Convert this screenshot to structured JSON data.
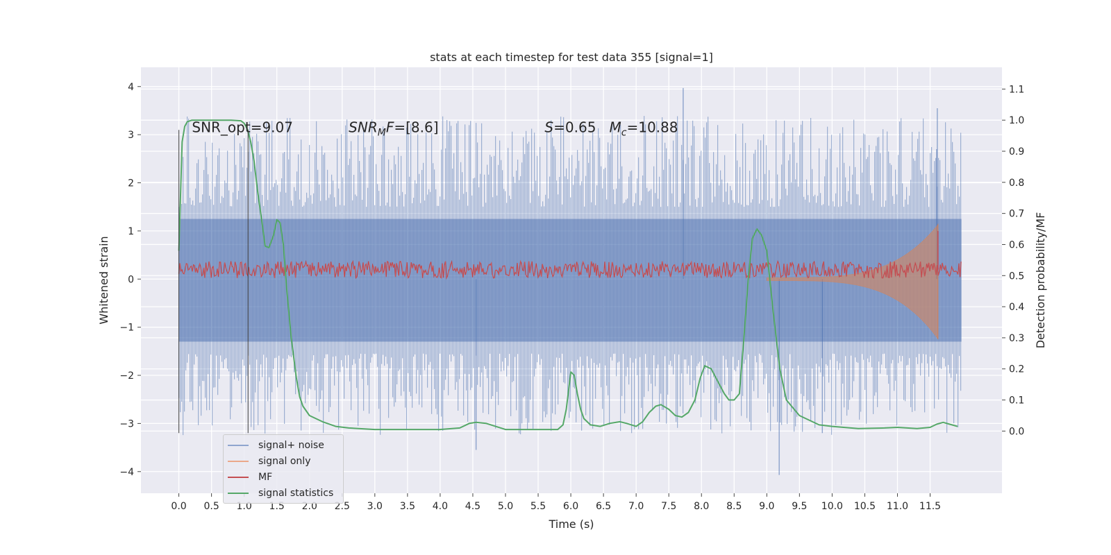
{
  "chart_data": {
    "type": "line",
    "title": "stats at each timestep for test data 355 [signal=1]",
    "xlabel": "Time (s)",
    "ylabel_left": "Whitened strain",
    "ylabel_right": "Detection probability/MF",
    "xlim": [
      -0.58,
      12.6
    ],
    "ylim_left": [
      -4.45,
      4.4
    ],
    "ylim_right": [
      -0.2,
      1.17
    ],
    "x_ticks": [
      0.0,
      0.5,
      1.0,
      1.5,
      2.0,
      2.5,
      3.0,
      3.5,
      4.0,
      4.5,
      5.0,
      5.5,
      6.0,
      6.5,
      7.0,
      7.5,
      8.0,
      8.5,
      9.0,
      9.5,
      10.0,
      10.5,
      11.0,
      11.5
    ],
    "x_tick_labels": [
      "0.0",
      "0.5",
      "1.0",
      "1.5",
      "2.0",
      "2.5",
      "3.0",
      "3.5",
      "4.0",
      "4.5",
      "5.0",
      "5.5",
      "6.0",
      "6.5",
      "7.0",
      "7.5",
      "8.0",
      "8.5",
      "9.0",
      "9.5",
      "10.0",
      "10.5",
      "11.0",
      "11.5"
    ],
    "y_left_ticks": [
      -4,
      -3,
      -2,
      -1,
      0,
      1,
      2,
      3,
      4
    ],
    "y_left_tick_labels": [
      "−4",
      "−3",
      "−2",
      "−1",
      "0",
      "1",
      "2",
      "3",
      "4"
    ],
    "y_right_ticks": [
      0.0,
      0.1,
      0.2,
      0.3,
      0.4,
      0.5,
      0.6,
      0.7,
      0.8,
      0.9,
      1.0,
      1.1
    ],
    "y_right_tick_labels": [
      "0.0",
      "0.1",
      "0.2",
      "0.3",
      "0.4",
      "0.5",
      "0.6",
      "0.7",
      "0.8",
      "0.9",
      "1.0",
      "1.1"
    ],
    "grid": true,
    "legend_position": "lower-left",
    "annotations": [
      {
        "text": "SNR_opt=9.07",
        "x": 0.2,
        "y": 3.05
      },
      {
        "text": "SNR_MF=[8.6]",
        "x": 2.6,
        "y": 3.05
      },
      {
        "text": "S=0.65   M_c=10.88",
        "x": 5.6,
        "y": 3.05
      }
    ],
    "vertical_lines": [
      {
        "x": 0.0,
        "y_range": [
          -3.2,
          3.1
        ]
      },
      {
        "x": 1.06,
        "y_range": [
          -3.2,
          3.1
        ]
      }
    ],
    "series": [
      {
        "name": "signal+ noise",
        "axis": "left",
        "color": "#4c72b0",
        "style": "noise-fill",
        "x_range": [
          0.0,
          11.98
        ],
        "envelope": [
          -1.3,
          1.25
        ],
        "peaks": [
          {
            "x": 7.72,
            "y": 3.97
          },
          {
            "x": 11.61,
            "y": 3.55
          },
          {
            "x": 9.19,
            "y": -4.07
          },
          {
            "x": 4.55,
            "y": -3.55
          },
          {
            "x": 9.85,
            "y": -3.2
          },
          {
            "x": 11.6,
            "y": 2.7
          }
        ]
      },
      {
        "name": "signal only",
        "axis": "left",
        "color": "#dd8452",
        "style": "chirp",
        "x_range": [
          9.0,
          11.62
        ],
        "peak_amplitude": 1.1
      },
      {
        "name": "MF",
        "axis": "left",
        "color": "#c44e52",
        "style": "noise-band",
        "x_range": [
          0.0,
          11.98
        ],
        "band": [
          0.0,
          0.35
        ],
        "peaks": [
          {
            "x": 11.62,
            "y": 1.0
          }
        ]
      },
      {
        "name": "signal statistics",
        "axis": "right",
        "color": "#55a868",
        "x": [
          0.0,
          0.05,
          0.09,
          0.13,
          0.2,
          0.3,
          0.5,
          0.8,
          0.95,
          1.0,
          1.05,
          1.1,
          1.15,
          1.2,
          1.28,
          1.32,
          1.38,
          1.45,
          1.5,
          1.55,
          1.6,
          1.65,
          1.72,
          1.8,
          1.85,
          1.9,
          2.0,
          2.2,
          2.4,
          2.6,
          3.0,
          3.5,
          4.0,
          4.3,
          4.45,
          4.55,
          4.7,
          5.0,
          5.5,
          5.8,
          5.88,
          5.93,
          6.0,
          6.05,
          6.1,
          6.15,
          6.2,
          6.3,
          6.45,
          6.6,
          6.75,
          6.85,
          7.0,
          7.1,
          7.2,
          7.3,
          7.38,
          7.5,
          7.6,
          7.7,
          7.8,
          7.9,
          7.98,
          8.05,
          8.15,
          8.25,
          8.35,
          8.42,
          8.5,
          8.58,
          8.65,
          8.72,
          8.78,
          8.85,
          8.92,
          9.0,
          9.1,
          9.2,
          9.3,
          9.5,
          9.8,
          10.0,
          10.4,
          10.8,
          11.0,
          11.3,
          11.5,
          11.6,
          11.7,
          11.8,
          11.92
        ],
        "values": [
          0.58,
          0.93,
          0.98,
          0.995,
          1.0,
          1.0,
          1.0,
          1.0,
          0.998,
          0.99,
          0.97,
          0.93,
          0.87,
          0.78,
          0.66,
          0.595,
          0.59,
          0.63,
          0.68,
          0.67,
          0.6,
          0.46,
          0.3,
          0.17,
          0.11,
          0.08,
          0.05,
          0.03,
          0.015,
          0.01,
          0.005,
          0.005,
          0.005,
          0.01,
          0.025,
          0.028,
          0.025,
          0.005,
          0.005,
          0.005,
          0.02,
          0.07,
          0.19,
          0.18,
          0.12,
          0.07,
          0.04,
          0.02,
          0.015,
          0.025,
          0.03,
          0.025,
          0.015,
          0.03,
          0.06,
          0.08,
          0.085,
          0.07,
          0.05,
          0.045,
          0.06,
          0.1,
          0.17,
          0.21,
          0.2,
          0.16,
          0.12,
          0.1,
          0.1,
          0.12,
          0.3,
          0.5,
          0.62,
          0.65,
          0.63,
          0.58,
          0.38,
          0.2,
          0.1,
          0.05,
          0.02,
          0.015,
          0.008,
          0.01,
          0.012,
          0.008,
          0.012,
          0.022,
          0.028,
          0.022,
          0.015
        ]
      }
    ]
  }
}
